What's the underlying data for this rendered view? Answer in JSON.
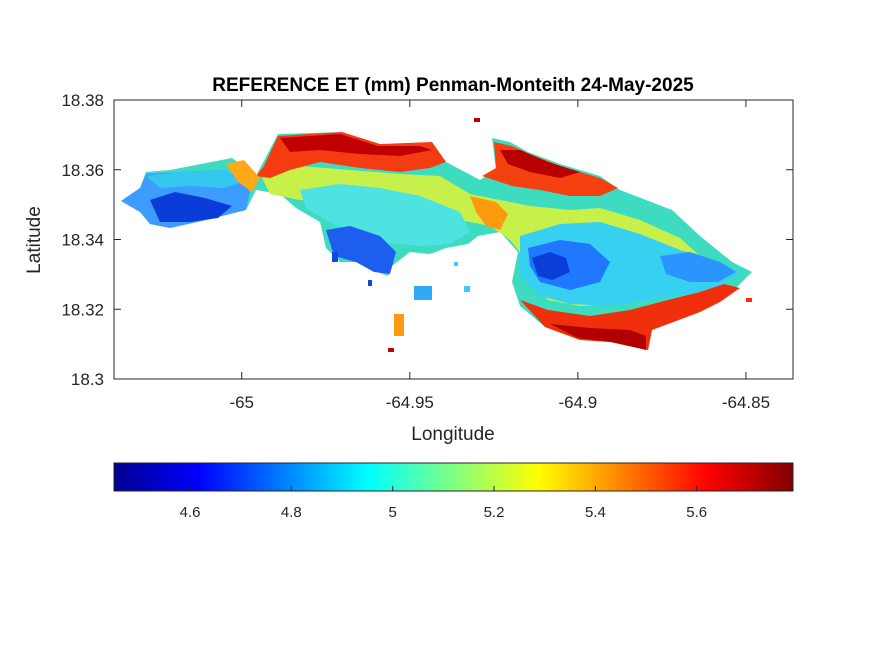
{
  "chart_data": {
    "type": "heatmap",
    "title": "REFERENCE ET (mm) Penman-Monteith 24-May-2025",
    "xlabel": "Longitude",
    "ylabel": "Latitude",
    "xlim": [
      -65.038,
      -64.836
    ],
    "ylim": [
      18.3,
      18.38
    ],
    "x_ticks": [
      -65,
      -64.95,
      -64.9,
      -64.85
    ],
    "x_tick_labels": [
      "-65",
      "-64.95",
      "-64.9",
      "-64.85"
    ],
    "y_ticks": [
      18.3,
      18.32,
      18.34,
      18.36,
      18.38
    ],
    "y_tick_labels": [
      "18.3",
      "18.32",
      "18.34",
      "18.36",
      "18.38"
    ],
    "colormap": "jet",
    "colorbar": {
      "location": "bottom",
      "range": [
        4.45,
        5.79
      ],
      "ticks": [
        4.6,
        4.8,
        5,
        5.2,
        5.4,
        5.6
      ],
      "tick_labels": [
        "4.6",
        "4.8",
        "5",
        "5.2",
        "5.4",
        "5.6"
      ]
    },
    "summary": {
      "min_value": 4.45,
      "max_value": 5.79,
      "high_values_location": "northern and southeastern coasts",
      "low_values_location": "western peninsula and east-central interior"
    }
  }
}
